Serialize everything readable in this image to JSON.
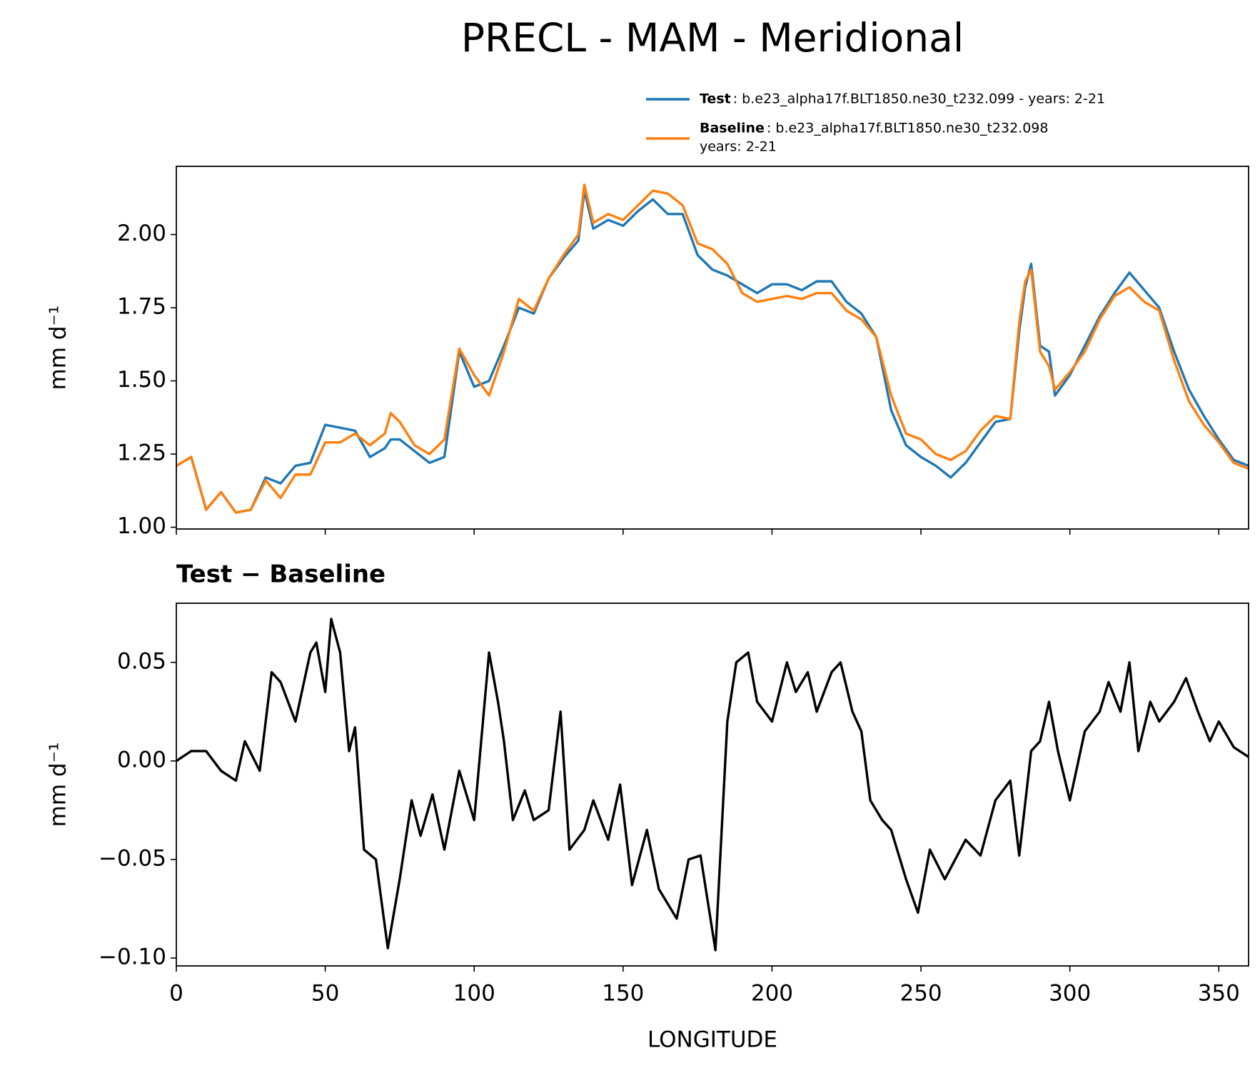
{
  "title": "PRECL - MAM - Meridional",
  "chart_data": [
    {
      "type": "line",
      "ylabel": "mm d⁻¹",
      "x": [
        0,
        5,
        10,
        15,
        20,
        25,
        30,
        35,
        40,
        45,
        50,
        55,
        60,
        65,
        70,
        72,
        75,
        80,
        85,
        90,
        95,
        100,
        105,
        110,
        115,
        120,
        125,
        130,
        135,
        137,
        140,
        145,
        150,
        155,
        160,
        165,
        170,
        175,
        180,
        185,
        190,
        195,
        200,
        205,
        210,
        215,
        220,
        225,
        230,
        235,
        240,
        245,
        250,
        255,
        260,
        265,
        270,
        275,
        280,
        283,
        285,
        287,
        290,
        293,
        295,
        300,
        305,
        310,
        315,
        320,
        325,
        330,
        335,
        340,
        345,
        350,
        355,
        360
      ],
      "series": [
        {
          "name": "Test",
          "label": ": b.e23_alpha17f.BLT1850.ne30_t232.099 - years: 2-21",
          "color": "#1f77b4",
          "values": [
            1.21,
            1.24,
            1.06,
            1.12,
            1.05,
            1.06,
            1.17,
            1.15,
            1.21,
            1.22,
            1.35,
            1.34,
            1.33,
            1.24,
            1.27,
            1.3,
            1.3,
            1.26,
            1.22,
            1.24,
            1.6,
            1.48,
            1.5,
            1.62,
            1.75,
            1.73,
            1.85,
            1.92,
            1.98,
            2.15,
            2.02,
            2.05,
            2.03,
            2.08,
            2.12,
            2.07,
            2.07,
            1.93,
            1.88,
            1.86,
            1.83,
            1.8,
            1.83,
            1.83,
            1.81,
            1.84,
            1.84,
            1.77,
            1.73,
            1.65,
            1.4,
            1.28,
            1.24,
            1.21,
            1.17,
            1.22,
            1.29,
            1.36,
            1.37,
            1.67,
            1.82,
            1.9,
            1.62,
            1.6,
            1.45,
            1.52,
            1.62,
            1.72,
            1.8,
            1.87,
            1.81,
            1.75,
            1.6,
            1.47,
            1.38,
            1.3,
            1.23,
            1.21
          ]
        },
        {
          "name": "Baseline",
          "label": [
            ": b.e23_alpha17f.BLT1850.ne30_t232.098",
            "years: 2-21"
          ],
          "color": "#ff7f0e",
          "values": [
            1.21,
            1.24,
            1.06,
            1.12,
            1.05,
            1.06,
            1.16,
            1.1,
            1.18,
            1.18,
            1.29,
            1.29,
            1.32,
            1.28,
            1.32,
            1.39,
            1.36,
            1.28,
            1.25,
            1.3,
            1.61,
            1.52,
            1.45,
            1.6,
            1.78,
            1.74,
            1.85,
            1.93,
            2.0,
            2.17,
            2.04,
            2.07,
            2.05,
            2.1,
            2.15,
            2.14,
            2.1,
            1.97,
            1.95,
            1.9,
            1.8,
            1.77,
            1.78,
            1.79,
            1.78,
            1.8,
            1.8,
            1.74,
            1.71,
            1.65,
            1.45,
            1.32,
            1.3,
            1.25,
            1.23,
            1.26,
            1.33,
            1.38,
            1.37,
            1.7,
            1.84,
            1.88,
            1.6,
            1.55,
            1.47,
            1.53,
            1.6,
            1.71,
            1.79,
            1.82,
            1.77,
            1.74,
            1.57,
            1.43,
            1.35,
            1.29,
            1.22,
            1.2
          ]
        }
      ],
      "xlim": [
        0,
        360
      ],
      "xticks": [
        0,
        50,
        100,
        150,
        200,
        250,
        300,
        350
      ],
      "ylim": [
        0.994,
        2.233
      ],
      "yticks": [
        {
          "value": 1,
          "label": "1.00"
        },
        {
          "value": 1.25,
          "label": "1.25"
        },
        {
          "value": 1.5,
          "label": "1.50"
        },
        {
          "value": 1.75,
          "label": "1.75"
        },
        {
          "value": 2,
          "label": "2.00"
        }
      ]
    },
    {
      "type": "line",
      "title": "Test − Baseline",
      "xlabel": "LONGITUDE",
      "ylabel": "mm d⁻¹",
      "color": "#000000",
      "x": [
        0,
        5,
        10,
        15,
        20,
        23,
        28,
        32,
        35,
        40,
        45,
        47,
        50,
        52,
        55,
        58,
        60,
        63,
        67,
        71,
        75,
        79,
        82,
        86,
        90,
        95,
        100,
        105,
        108,
        110,
        113,
        117,
        120,
        125,
        129,
        132,
        137,
        140,
        145,
        149,
        153,
        158,
        162,
        168,
        172,
        176,
        181,
        185,
        188,
        192,
        195,
        200,
        205,
        208,
        212,
        215,
        220,
        223,
        227,
        230,
        233,
        237,
        240,
        245,
        249,
        253,
        258,
        265,
        270,
        275,
        280,
        283,
        287,
        290,
        293,
        296,
        300,
        305,
        310,
        313,
        317,
        320,
        323,
        327,
        330,
        335,
        339,
        343,
        347,
        350,
        355,
        360
      ],
      "values": [
        0.0,
        0.005,
        0.005,
        -0.005,
        -0.01,
        0.01,
        -0.005,
        0.045,
        0.04,
        0.02,
        0.055,
        0.06,
        0.035,
        0.072,
        0.055,
        0.005,
        0.017,
        -0.045,
        -0.05,
        -0.095,
        -0.06,
        -0.02,
        -0.038,
        -0.017,
        -0.045,
        -0.005,
        -0.03,
        0.055,
        0.03,
        0.01,
        -0.03,
        -0.015,
        -0.03,
        -0.025,
        0.025,
        -0.045,
        -0.035,
        -0.02,
        -0.04,
        -0.012,
        -0.063,
        -0.035,
        -0.065,
        -0.08,
        -0.05,
        -0.048,
        -0.096,
        0.02,
        0.05,
        0.055,
        0.03,
        0.02,
        0.05,
        0.035,
        0.045,
        0.025,
        0.045,
        0.05,
        0.025,
        0.015,
        -0.02,
        -0.03,
        -0.035,
        -0.06,
        -0.077,
        -0.045,
        -0.06,
        -0.04,
        -0.048,
        -0.02,
        -0.01,
        -0.048,
        0.005,
        0.01,
        0.03,
        0.005,
        -0.02,
        0.015,
        0.025,
        0.04,
        0.025,
        0.05,
        0.005,
        0.03,
        0.02,
        0.03,
        0.042,
        0.025,
        0.01,
        0.02,
        0.007,
        0.002
      ],
      "xlim": [
        0,
        360
      ],
      "xticks": [
        0,
        50,
        100,
        150,
        200,
        250,
        300,
        350
      ],
      "ylim": [
        -0.104,
        0.08
      ],
      "yticks": [
        {
          "value": -0.1,
          "label": "−0.10"
        },
        {
          "value": -0.05,
          "label": "−0.05"
        },
        {
          "value": 0,
          "label": "0.00"
        },
        {
          "value": 0.05,
          "label": "0.05"
        }
      ]
    }
  ]
}
